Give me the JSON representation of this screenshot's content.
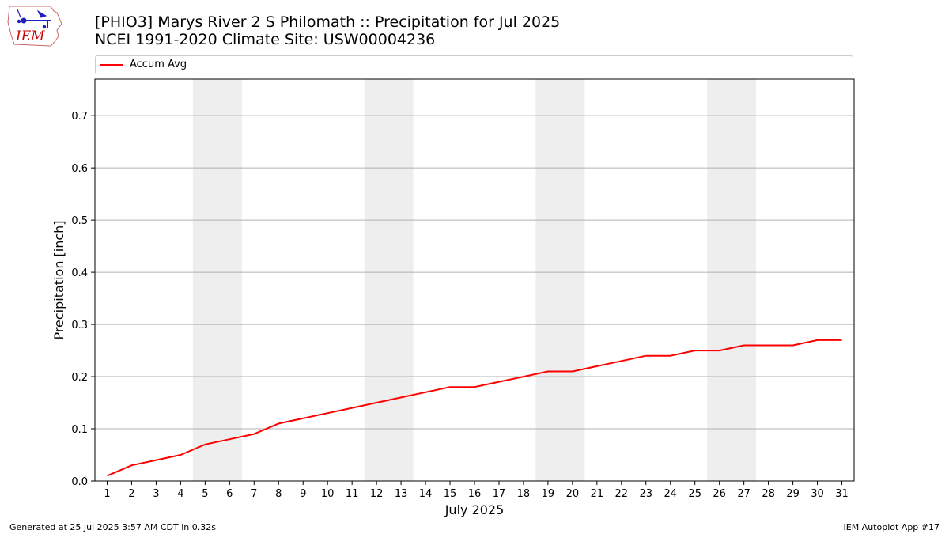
{
  "header": {
    "title_line1": "[PHIO3] Marys River 2 S Philomath :: Precipitation for Jul 2025",
    "title_line2": "NCEI 1991-2020 Climate Site: USW00004236",
    "logo_text": "IEM"
  },
  "footer": {
    "generated": "Generated at 25 Jul 2025 3:57 AM CDT in 0.32s",
    "app": "IEM Autoplot App #17"
  },
  "colors": {
    "series": "#ff0000",
    "weekend_band": "#eeeeee",
    "grid": "#b0b0b0",
    "logo": "#2020c0",
    "logo_text": "#cc0000"
  },
  "chart_data": {
    "type": "line",
    "xlabel": "July 2025",
    "ylabel": "Precipitation [inch]",
    "xlim": [
      0.5,
      31.5
    ],
    "ylim": [
      0.0,
      0.77
    ],
    "grid": "horizontal",
    "legend_placement": "top",
    "x_ticks": [
      "1",
      "2",
      "3",
      "4",
      "5",
      "6",
      "7",
      "8",
      "9",
      "10",
      "11",
      "12",
      "13",
      "14",
      "15",
      "16",
      "17",
      "18",
      "19",
      "20",
      "21",
      "22",
      "23",
      "24",
      "25",
      "26",
      "27",
      "28",
      "29",
      "30",
      "31"
    ],
    "y_ticks": [
      "0.0",
      "0.1",
      "0.2",
      "0.3",
      "0.4",
      "0.5",
      "0.6",
      "0.7"
    ],
    "weekend_bands": [
      [
        5,
        6
      ],
      [
        12,
        13
      ],
      [
        19,
        20
      ],
      [
        26,
        27
      ]
    ],
    "series": [
      {
        "name": "Accum Avg",
        "color": "#ff0000",
        "x": [
          1,
          2,
          3,
          4,
          5,
          6,
          7,
          8,
          9,
          10,
          11,
          12,
          13,
          14,
          15,
          16,
          17,
          18,
          19,
          20,
          21,
          22,
          23,
          24,
          25,
          26,
          27,
          28,
          29,
          30,
          31
        ],
        "values": [
          0.01,
          0.03,
          0.04,
          0.05,
          0.07,
          0.08,
          0.09,
          0.11,
          0.12,
          0.13,
          0.14,
          0.15,
          0.16,
          0.17,
          0.18,
          0.18,
          0.19,
          0.2,
          0.21,
          0.21,
          0.22,
          0.23,
          0.24,
          0.24,
          0.25,
          0.25,
          0.26,
          0.26,
          0.26,
          0.27,
          0.27
        ]
      }
    ]
  }
}
